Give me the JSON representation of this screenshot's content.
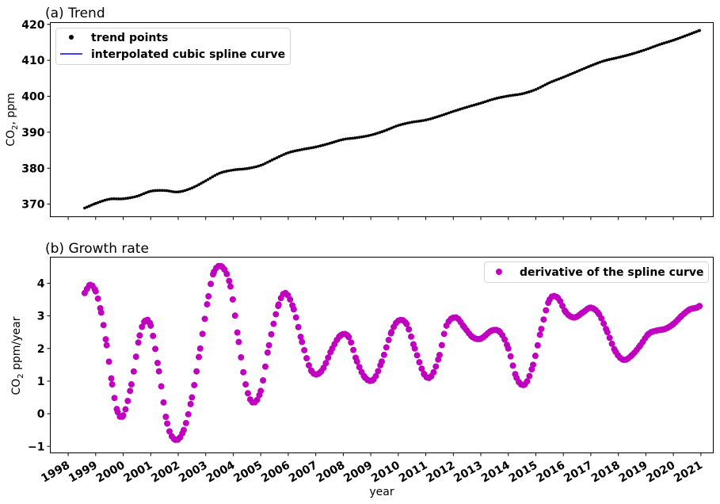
{
  "chart_data": [
    {
      "type": "line",
      "title": "(a) Trend",
      "ylabel": "CO2, ppm",
      "ylabel_base": "CO",
      "ylabel_sub": "2",
      "ylabel_rest": ", ppm",
      "ylim": [
        366.5,
        420.5
      ],
      "yticks": [
        370,
        380,
        390,
        400,
        410,
        420
      ],
      "xlim": [
        1997.35,
        2021.45
      ],
      "grid": false,
      "legend_position": "top-left",
      "series": [
        {
          "name": "trend points",
          "kind": "points",
          "color": "#000000"
        },
        {
          "name": "interpolated cubic spline curve",
          "kind": "line",
          "color": "#0000ff"
        }
      ],
      "x": [
        1998.6,
        1999.0,
        1999.5,
        2000.0,
        2000.5,
        2001.0,
        2001.5,
        2002.0,
        2002.5,
        2003.0,
        2003.5,
        2004.0,
        2004.5,
        2005.0,
        2005.5,
        2006.0,
        2006.5,
        2007.0,
        2007.5,
        2008.0,
        2008.5,
        2009.0,
        2009.5,
        2010.0,
        2010.5,
        2011.0,
        2011.5,
        2012.0,
        2012.5,
        2013.0,
        2013.5,
        2014.0,
        2014.5,
        2015.0,
        2015.5,
        2016.0,
        2016.5,
        2017.0,
        2017.5,
        2018.0,
        2018.5,
        2019.0,
        2019.5,
        2020.0,
        2020.5,
        2020.95
      ],
      "values": [
        368.9,
        370.2,
        371.4,
        371.5,
        372.2,
        373.6,
        373.8,
        373.4,
        374.5,
        376.5,
        378.6,
        379.5,
        379.9,
        380.8,
        382.6,
        384.3,
        385.2,
        385.9,
        386.9,
        388.0,
        388.5,
        389.2,
        390.4,
        391.9,
        392.8,
        393.4,
        394.5,
        395.8,
        397.0,
        398.1,
        399.3,
        400.1,
        400.7,
        401.9,
        403.8,
        405.3,
        406.9,
        408.5,
        409.9,
        410.8,
        411.8,
        413.0,
        414.4,
        415.6,
        417.0,
        418.3
      ]
    },
    {
      "type": "scatter",
      "title": "(b) Growth rate",
      "xlabel": "year",
      "ylabel": "CO2 ppm/year",
      "ylabel_base": "CO",
      "ylabel_sub": "2",
      "ylabel_rest": " ppm/year",
      "ylim": [
        -1.2,
        4.8
      ],
      "yticks": [
        -1,
        0,
        1,
        2,
        3,
        4
      ],
      "xlim": [
        1997.35,
        2021.45
      ],
      "xticks": [
        1998,
        1999,
        2000,
        2001,
        2002,
        2003,
        2004,
        2005,
        2006,
        2007,
        2008,
        2009,
        2010,
        2011,
        2012,
        2013,
        2014,
        2015,
        2016,
        2017,
        2018,
        2019,
        2020,
        2021
      ],
      "grid": false,
      "legend_position": "top-right",
      "series": [
        {
          "name": "derivative of the spline curve",
          "color": "#bf00bf"
        }
      ],
      "x": [
        1998.6,
        1998.8,
        1999.0,
        1999.2,
        1999.4,
        1999.6,
        1999.8,
        2000.0,
        2000.3,
        2000.6,
        2000.8,
        2001.0,
        2001.3,
        2001.6,
        2001.9,
        2002.2,
        2002.5,
        2002.8,
        2003.1,
        2003.3,
        2003.6,
        2003.9,
        2004.2,
        2004.45,
        2004.7,
        2005.0,
        2005.3,
        2005.65,
        2005.9,
        2006.2,
        2006.5,
        2006.85,
        2007.2,
        2007.6,
        2007.9,
        2008.2,
        2008.5,
        2008.8,
        2009.1,
        2009.4,
        2009.75,
        2010.0,
        2010.3,
        2010.6,
        2010.95,
        2011.2,
        2011.5,
        2011.75,
        2012.1,
        2012.4,
        2012.7,
        2013.0,
        2013.4,
        2013.7,
        2014.0,
        2014.3,
        2014.6,
        2014.9,
        2015.2,
        2015.5,
        2015.8,
        2016.1,
        2016.4,
        2016.7,
        2017.0,
        2017.3,
        2017.6,
        2017.9,
        2018.2,
        2018.5,
        2018.8,
        2019.1,
        2019.4,
        2019.7,
        2020.0,
        2020.3,
        2020.6,
        2020.85,
        2020.95
      ],
      "values": [
        3.7,
        3.95,
        3.75,
        3.1,
        2.1,
        0.9,
        0.05,
        -0.05,
        0.9,
        2.4,
        2.85,
        2.7,
        1.3,
        -0.3,
        -0.8,
        -0.5,
        0.5,
        2.0,
        3.6,
        4.35,
        4.5,
        3.9,
        2.2,
        0.9,
        0.35,
        0.7,
        2.1,
        3.35,
        3.7,
        3.2,
        2.2,
        1.3,
        1.3,
        2.0,
        2.4,
        2.35,
        1.6,
        1.1,
        1.05,
        1.6,
        2.5,
        2.85,
        2.75,
        2.0,
        1.2,
        1.15,
        1.8,
        2.7,
        2.95,
        2.65,
        2.35,
        2.3,
        2.55,
        2.5,
        2.0,
        1.1,
        0.9,
        1.5,
        2.6,
        3.5,
        3.55,
        3.1,
        2.95,
        3.1,
        3.25,
        3.05,
        2.5,
        1.9,
        1.65,
        1.8,
        2.1,
        2.45,
        2.55,
        2.6,
        2.75,
        3.0,
        3.2,
        3.25,
        3.3
      ]
    }
  ]
}
